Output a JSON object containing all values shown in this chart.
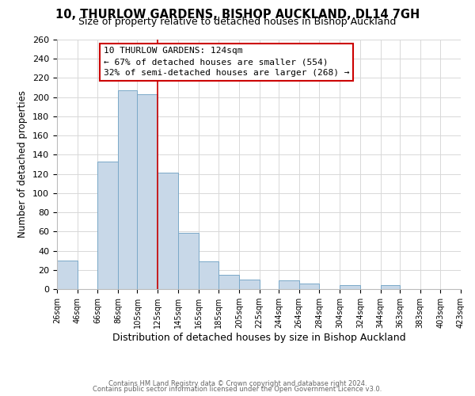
{
  "title1": "10, THURLOW GARDENS, BISHOP AUCKLAND, DL14 7GH",
  "title2": "Size of property relative to detached houses in Bishop Auckland",
  "xlabel": "Distribution of detached houses by size in Bishop Auckland",
  "ylabel": "Number of detached properties",
  "bar_edges": [
    26,
    46,
    66,
    86,
    105,
    125,
    145,
    165,
    185,
    205,
    225,
    244,
    264,
    284,
    304,
    324,
    344,
    363,
    383,
    403,
    423
  ],
  "bar_heights": [
    30,
    0,
    133,
    207,
    203,
    121,
    59,
    29,
    15,
    10,
    0,
    9,
    6,
    0,
    4,
    0,
    4,
    0,
    0,
    0
  ],
  "bar_color": "#c8d8e8",
  "bar_edge_color": "#7aa8c8",
  "vline_x": 125,
  "vline_color": "#cc0000",
  "annotation_title": "10 THURLOW GARDENS: 124sqm",
  "annotation_line1": "← 67% of detached houses are smaller (554)",
  "annotation_line2": "32% of semi-detached houses are larger (268) →",
  "annotation_box_color": "#ffffff",
  "annotation_box_edge": "#cc0000",
  "ylim": [
    0,
    260
  ],
  "tick_labels": [
    "26sqm",
    "46sqm",
    "66sqm",
    "86sqm",
    "105sqm",
    "125sqm",
    "145sqm",
    "165sqm",
    "185sqm",
    "205sqm",
    "225sqm",
    "244sqm",
    "264sqm",
    "284sqm",
    "304sqm",
    "324sqm",
    "344sqm",
    "363sqm",
    "383sqm",
    "403sqm",
    "423sqm"
  ],
  "yticks": [
    0,
    20,
    40,
    60,
    80,
    100,
    120,
    140,
    160,
    180,
    200,
    220,
    240,
    260
  ],
  "footer1": "Contains HM Land Registry data © Crown copyright and database right 2024.",
  "footer2": "Contains public sector information licensed under the Open Government Licence v3.0.",
  "bg_color": "#ffffff",
  "grid_color": "#d8d8d8",
  "title1_fontsize": 10.5,
  "title2_fontsize": 9,
  "xlabel_fontsize": 9,
  "ylabel_fontsize": 8.5,
  "tick_fontsize": 7,
  "ytick_fontsize": 8,
  "footer_fontsize": 6,
  "annotation_fontsize": 8
}
